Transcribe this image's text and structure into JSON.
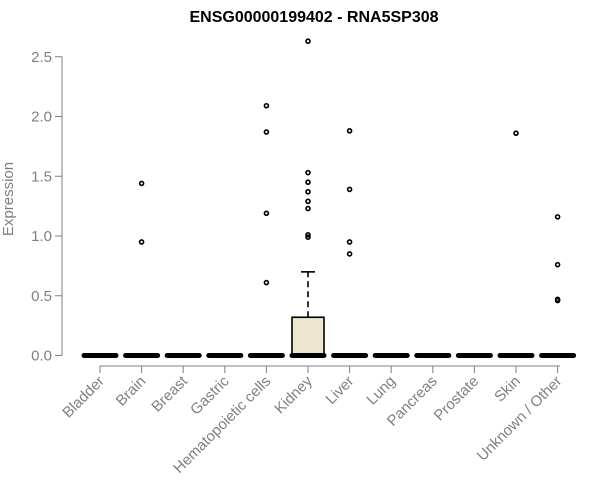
{
  "chart_data": {
    "type": "boxplot",
    "title": "ENSG00000199402 - RNA5SP308",
    "xlabel": "",
    "ylabel": "Expression",
    "ylim": [
      0,
      2.65
    ],
    "yticks": [
      0.0,
      0.5,
      1.0,
      1.5,
      2.0,
      2.5
    ],
    "ytick_labels": [
      "0.0",
      "0.5",
      "1.0",
      "1.5",
      "2.0",
      "2.5"
    ],
    "categories": [
      "Bladder",
      "Brain",
      "Breast",
      "Gastric",
      "Hematopoietic cells",
      "Kidney",
      "Liver",
      "Lung",
      "Pancreas",
      "Prostate",
      "Skin",
      "Unknown / Other"
    ],
    "boxes": [
      {
        "category": "Bladder",
        "q1": 0,
        "median": 0,
        "q3": 0,
        "whisker_low": 0,
        "whisker_high": 0,
        "outliers": []
      },
      {
        "category": "Brain",
        "q1": 0,
        "median": 0,
        "q3": 0,
        "whisker_low": 0,
        "whisker_high": 0,
        "outliers": [
          1.44,
          0.95
        ]
      },
      {
        "category": "Breast",
        "q1": 0,
        "median": 0,
        "q3": 0,
        "whisker_low": 0,
        "whisker_high": 0,
        "outliers": []
      },
      {
        "category": "Gastric",
        "q1": 0,
        "median": 0,
        "q3": 0,
        "whisker_low": 0,
        "whisker_high": 0,
        "outliers": []
      },
      {
        "category": "Hematopoietic cells",
        "q1": 0,
        "median": 0,
        "q3": 0,
        "whisker_low": 0,
        "whisker_high": 0,
        "outliers": [
          2.09,
          1.87,
          1.19,
          0.61
        ]
      },
      {
        "category": "Kidney",
        "q1": 0,
        "median": 0,
        "q3": 0.32,
        "whisker_low": 0,
        "whisker_high": 0.7,
        "outliers": [
          2.63,
          1.53,
          1.45,
          1.37,
          1.29,
          1.23,
          1.01,
          0.99
        ]
      },
      {
        "category": "Liver",
        "q1": 0,
        "median": 0,
        "q3": 0,
        "whisker_low": 0,
        "whisker_high": 0,
        "outliers": [
          1.88,
          1.39,
          0.95,
          0.85
        ]
      },
      {
        "category": "Lung",
        "q1": 0,
        "median": 0,
        "q3": 0,
        "whisker_low": 0,
        "whisker_high": 0,
        "outliers": []
      },
      {
        "category": "Pancreas",
        "q1": 0,
        "median": 0,
        "q3": 0,
        "whisker_low": 0,
        "whisker_high": 0,
        "outliers": []
      },
      {
        "category": "Prostate",
        "q1": 0,
        "median": 0,
        "q3": 0,
        "whisker_low": 0,
        "whisker_high": 0,
        "outliers": []
      },
      {
        "category": "Skin",
        "q1": 0,
        "median": 0,
        "q3": 0,
        "whisker_low": 0,
        "whisker_high": 0,
        "outliers": [
          1.86
        ]
      },
      {
        "category": "Unknown / Other",
        "q1": 0,
        "median": 0,
        "q3": 0,
        "whisker_low": 0,
        "whisker_high": 0,
        "outliers": [
          1.16,
          0.76,
          0.47,
          0.46
        ]
      }
    ],
    "colors": {
      "box_fill": "#ede6cc",
      "median": "#000000",
      "axis": "#808080",
      "text_muted": "#808080"
    },
    "grid": false,
    "legend": "none"
  }
}
